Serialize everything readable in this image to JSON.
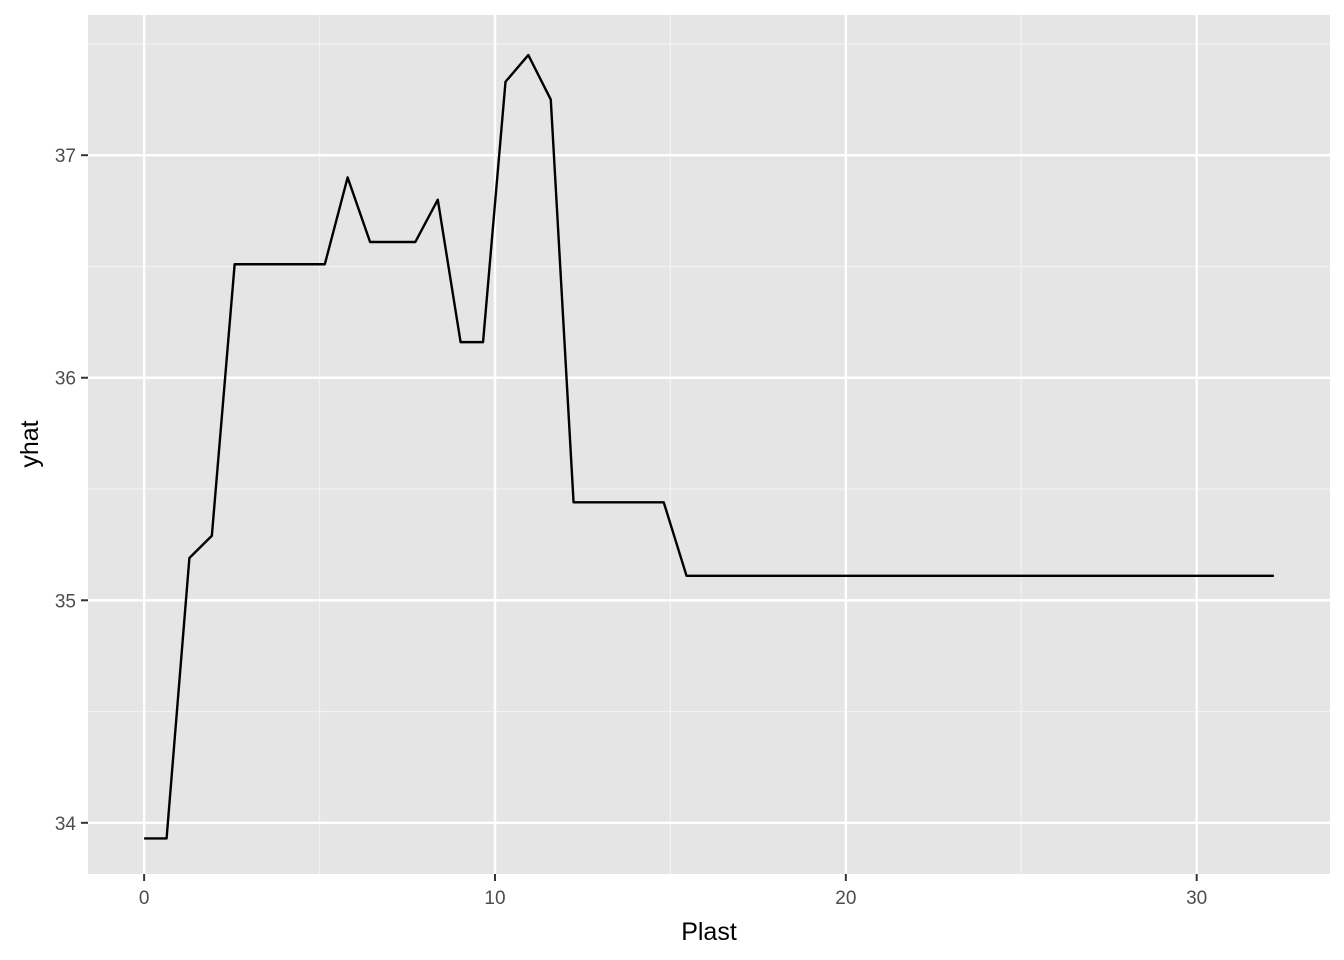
{
  "chart_data": {
    "type": "line",
    "title": "",
    "xlabel": "Plast",
    "ylabel": "yhat",
    "xlim": [
      -1.6,
      33.8
    ],
    "ylim": [
      33.77,
      37.63
    ],
    "x_ticks": [
      0,
      10,
      20,
      30
    ],
    "x_minor_ticks": [
      5,
      15,
      25
    ],
    "y_ticks": [
      34,
      35,
      36,
      37
    ],
    "y_minor_ticks": [
      34.5,
      35.5,
      36.5,
      37.5
    ],
    "grid": true,
    "legend": "none",
    "colors": {
      "panel_background": "#e5e5e5",
      "grid_major": "#ffffff",
      "grid_minor": "#f2f2f2",
      "line": "#000000",
      "tick_mark": "#333333"
    },
    "series": [
      {
        "x": [
          0,
          0.64,
          1.29,
          1.93,
          2.58,
          3.22,
          3.86,
          4.51,
          5.15,
          5.8,
          6.44,
          7.08,
          7.73,
          8.37,
          9.02,
          9.66,
          10.3,
          10.95,
          11.59,
          12.24,
          12.88,
          13.52,
          14.17,
          14.81,
          15.46,
          16.1,
          32.2
        ],
        "y": [
          33.93,
          33.93,
          35.19,
          35.29,
          36.51,
          36.51,
          36.51,
          36.51,
          36.51,
          36.9,
          36.61,
          36.61,
          36.61,
          36.8,
          36.16,
          36.16,
          37.33,
          37.45,
          37.25,
          35.44,
          35.44,
          35.44,
          35.44,
          35.44,
          35.11,
          35.11,
          35.11
        ]
      }
    ]
  }
}
